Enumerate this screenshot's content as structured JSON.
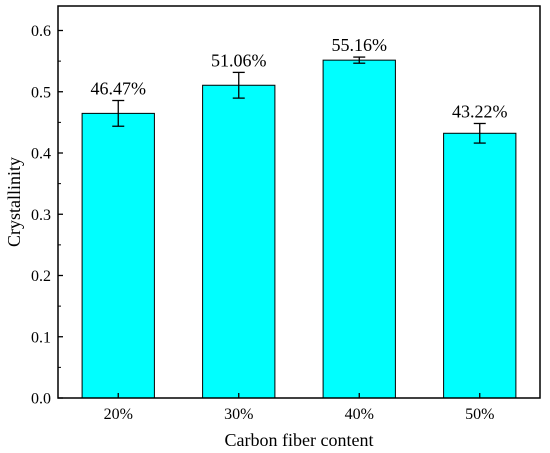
{
  "chart_data": {
    "type": "bar",
    "categories": [
      "20%",
      "30%",
      "40%",
      "50%"
    ],
    "values": [
      0.4647,
      0.5106,
      0.5516,
      0.4322
    ],
    "errors": [
      0.021,
      0.021,
      0.005,
      0.016
    ],
    "data_labels": [
      "46.47%",
      "51.06%",
      "55.16%",
      "43.22%"
    ],
    "title": "",
    "xlabel": "Carbon fiber content",
    "ylabel": "Crystallinity",
    "ylim": [
      0,
      0.64
    ],
    "yticks": [
      0.0,
      0.1,
      0.2,
      0.3,
      0.4,
      0.5,
      0.6
    ],
    "ytick_labels": [
      "0.0",
      "0.1",
      "0.2",
      "0.3",
      "0.4",
      "0.5",
      "0.6"
    ],
    "grid": false,
    "legend": false,
    "bar_color": "#00FFFF",
    "edge_color": "#000000"
  }
}
